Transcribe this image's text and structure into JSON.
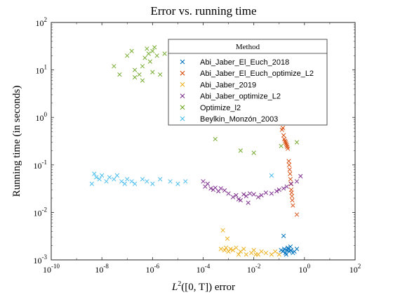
{
  "chart_data": {
    "type": "scatter",
    "title": "Error vs. running time",
    "xlabel_math": "L",
    "xlabel_sup": "2",
    "xlabel_rest": "([0, T]) error",
    "ylabel": "Running time (in seconds)",
    "xscale": "log",
    "yscale": "log",
    "xlim": [
      1e-10,
      100
    ],
    "ylim": [
      0.001,
      100
    ],
    "x_ticks": [
      {
        "v": 1e-10,
        "base": "10",
        "exp": "-10"
      },
      {
        "v": 1e-08,
        "base": "10",
        "exp": "-8"
      },
      {
        "v": 1e-06,
        "base": "10",
        "exp": "-6"
      },
      {
        "v": 0.0001,
        "base": "10",
        "exp": "-4"
      },
      {
        "v": 0.01,
        "base": "10",
        "exp": "-2"
      },
      {
        "v": 1,
        "base": "10",
        "exp": "0"
      },
      {
        "v": 100,
        "base": "10",
        "exp": "2"
      }
    ],
    "y_ticks": [
      {
        "v": 0.001,
        "base": "10",
        "exp": "-3"
      },
      {
        "v": 0.01,
        "base": "10",
        "exp": "-2"
      },
      {
        "v": 0.1,
        "base": "10",
        "exp": "-1"
      },
      {
        "v": 1,
        "base": "10",
        "exp": "0"
      },
      {
        "v": 10,
        "base": "10",
        "exp": "1"
      },
      {
        "v": 100,
        "base": "10",
        "exp": "2"
      }
    ],
    "grid": false,
    "legend_title": "Method",
    "legend_placement": "top-right",
    "series": [
      {
        "name": "Abi_Jaber_El_Euch_2018",
        "color": "#0072BD",
        "points": [
          [
            0.15,
            0.0032
          ],
          [
            0.12,
            0.0016
          ],
          [
            0.14,
            0.0015
          ],
          [
            0.16,
            0.0017
          ],
          [
            0.18,
            0.0014
          ],
          [
            0.2,
            0.0016
          ],
          [
            0.22,
            0.0018
          ],
          [
            0.25,
            0.0015
          ],
          [
            0.3,
            0.0016
          ],
          [
            0.35,
            0.0014
          ],
          [
            0.4,
            0.0015
          ],
          [
            0.5,
            0.0017
          ],
          [
            0.28,
            0.0019
          ],
          [
            0.19,
            0.0013
          ],
          [
            0.23,
            0.0017
          ]
        ]
      },
      {
        "name": "Abi_Jaber_El_Euch_optimize_L2",
        "color": "#D95319",
        "points": [
          [
            0.12,
            0.75
          ],
          [
            0.13,
            0.55
          ],
          [
            0.15,
            0.42
          ],
          [
            0.16,
            0.35
          ],
          [
            0.18,
            0.3
          ],
          [
            0.2,
            0.26
          ],
          [
            0.22,
            0.22
          ],
          [
            0.24,
            0.12
          ],
          [
            0.26,
            0.08
          ],
          [
            0.28,
            0.05
          ],
          [
            0.3,
            0.03
          ],
          [
            0.32,
            0.022
          ],
          [
            0.35,
            0.014
          ],
          [
            0.5,
            0.009
          ],
          [
            0.14,
            0.6
          ],
          [
            0.17,
            0.32
          ],
          [
            0.19,
            0.28
          ],
          [
            0.21,
            0.24
          ],
          [
            0.25,
            0.1
          ],
          [
            0.27,
            0.065
          ],
          [
            0.29,
            0.04
          ],
          [
            0.31,
            0.026
          ],
          [
            0.33,
            0.018
          ]
        ]
      },
      {
        "name": "Abi_Jaber_2019",
        "color": "#EDB120",
        "points": [
          [
            0.0006,
            0.0042
          ],
          [
            0.0005,
            0.0017
          ],
          [
            0.0007,
            0.0016
          ],
          [
            0.0008,
            0.0018
          ],
          [
            0.001,
            0.0015
          ],
          [
            0.0012,
            0.0017
          ],
          [
            0.0015,
            0.0016
          ],
          [
            0.002,
            0.0018
          ],
          [
            0.003,
            0.0015
          ],
          [
            0.005,
            0.0013
          ],
          [
            0.008,
            0.0014
          ],
          [
            0.01,
            0.0016
          ],
          [
            0.015,
            0.0013
          ],
          [
            0.02,
            0.0015
          ],
          [
            0.03,
            0.0014
          ],
          [
            0.05,
            0.0013
          ],
          [
            0.07,
            0.0015
          ],
          [
            0.1,
            0.0013
          ],
          [
            0.0009,
            0.0028
          ],
          [
            0.0025,
            0.0013
          ],
          [
            0.004,
            0.0017
          ],
          [
            0.012,
            0.0013
          ]
        ]
      },
      {
        "name": "Abi_Jaber_optimize_L2",
        "color": "#7E2F8E",
        "points": [
          [
            0.0001,
            0.045
          ],
          [
            0.00012,
            0.035
          ],
          [
            0.00015,
            0.04
          ],
          [
            0.0002,
            0.032
          ],
          [
            0.00025,
            0.03
          ],
          [
            0.0003,
            0.033
          ],
          [
            0.0004,
            0.028
          ],
          [
            0.0005,
            0.032
          ],
          [
            0.0007,
            0.029
          ],
          [
            0.001,
            0.025
          ],
          [
            0.0015,
            0.021
          ],
          [
            0.002,
            0.023
          ],
          [
            0.003,
            0.018
          ],
          [
            0.004,
            0.024
          ],
          [
            0.005,
            0.022
          ],
          [
            0.007,
            0.025
          ],
          [
            0.01,
            0.024
          ],
          [
            0.015,
            0.021
          ],
          [
            0.02,
            0.023
          ],
          [
            0.03,
            0.026
          ],
          [
            0.05,
            0.025
          ],
          [
            0.08,
            0.028
          ],
          [
            0.1,
            0.03
          ],
          [
            0.15,
            0.032
          ],
          [
            0.2,
            0.035
          ],
          [
            0.3,
            0.04
          ],
          [
            0.5,
            0.045
          ],
          [
            0.7,
            0.058
          ],
          [
            0.0025,
            0.019
          ],
          [
            0.006,
            0.016
          ]
        ]
      },
      {
        "name": "Optimize_l2",
        "color": "#77AC30",
        "points": [
          [
            3e-08,
            12
          ],
          [
            5e-08,
            8
          ],
          [
            1e-07,
            20
          ],
          [
            1.5e-07,
            25
          ],
          [
            2e-07,
            10
          ],
          [
            3e-07,
            8
          ],
          [
            4e-07,
            6
          ],
          [
            5e-07,
            18
          ],
          [
            6e-07,
            28
          ],
          [
            7e-07,
            22
          ],
          [
            8e-07,
            15
          ],
          [
            1e-06,
            25
          ],
          [
            1.2e-06,
            30
          ],
          [
            1.5e-06,
            20
          ],
          [
            2e-06,
            8
          ],
          [
            3e-06,
            22
          ],
          [
            5e-06,
            10
          ],
          [
            2e-07,
            7
          ],
          [
            4e-07,
            12
          ],
          [
            1e-06,
            9
          ],
          [
            0.0001,
            1.2
          ],
          [
            0.0003,
            0.35
          ],
          [
            0.003,
            0.2
          ],
          [
            0.01,
            0.18
          ],
          [
            0.5,
            0.3
          ],
          [
            0.12,
            0.25
          ]
        ]
      },
      {
        "name": "Beylkin_Monzón_2003",
        "color": "#4DBEEE",
        "points": [
          [
            4e-09,
            0.04
          ],
          [
            5e-09,
            0.065
          ],
          [
            6e-09,
            0.055
          ],
          [
            8e-09,
            0.05
          ],
          [
            1e-08,
            0.06
          ],
          [
            1.5e-08,
            0.045
          ],
          [
            2e-08,
            0.055
          ],
          [
            3e-08,
            0.05
          ],
          [
            4e-08,
            0.06
          ],
          [
            6e-08,
            0.045
          ],
          [
            8e-08,
            0.04
          ],
          [
            1e-07,
            0.05
          ],
          [
            1.5e-07,
            0.045
          ],
          [
            2e-07,
            0.04
          ],
          [
            4e-07,
            0.05
          ],
          [
            6e-07,
            0.045
          ],
          [
            1e-06,
            0.04
          ],
          [
            2e-06,
            0.05
          ],
          [
            5e-06,
            0.045
          ],
          [
            1e-05,
            0.04
          ],
          [
            2e-05,
            0.045
          ],
          [
            0.05,
            0.06
          ]
        ]
      }
    ]
  }
}
